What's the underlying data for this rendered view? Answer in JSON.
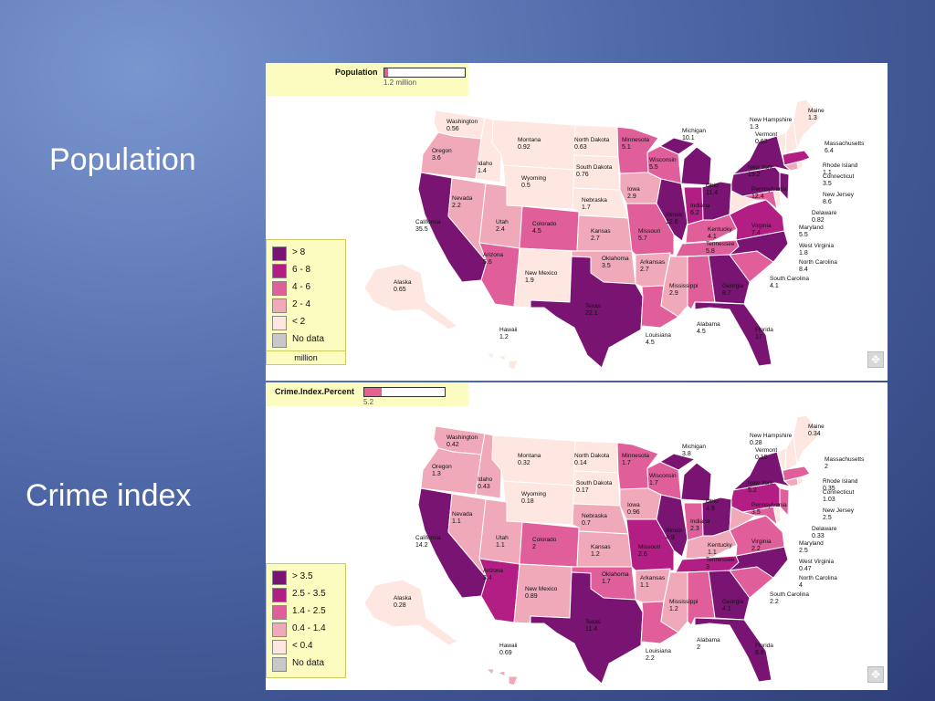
{
  "slide": {
    "label1": "Population",
    "label2": "Crime index"
  },
  "maps": [
    {
      "title": "Population",
      "indicator": {
        "value_text": "1.2 million",
        "fill_fraction": 0.05
      },
      "legend": [
        {
          "label": "> 8",
          "color": "#7a1473"
        },
        {
          "label": "6 - 8",
          "color": "#b21e84"
        },
        {
          "label": "4 - 6",
          "color": "#e05f9a"
        },
        {
          "label": "2 - 4",
          "color": "#f0a9b8"
        },
        {
          "label": "< 2",
          "color": "#fde7e0"
        },
        {
          "label": "No data",
          "color": "#c8c8c8"
        }
      ],
      "unit": "million",
      "states": {
        "Washington": "0.56",
        "Oregon": "3.6",
        "California": "35.5",
        "Nevada": "2.2",
        "Idaho": "1.4",
        "Montana": "0.92",
        "Wyoming": "0.5",
        "Utah": "2.4",
        "Arizona": "5.6",
        "Colorado": "4.5",
        "New Mexico": "1.9",
        "North Dakota": "0.63",
        "South Dakota": "0.76",
        "Nebraska": "1.7",
        "Kansas": "2.7",
        "Oklahoma": "3.5",
        "Texas": "22.1",
        "Minnesota": "5.1",
        "Iowa": "2.9",
        "Missouri": "5.7",
        "Arkansas": "2.7",
        "Louisiana": "4.5",
        "Wisconsin": "5.5",
        "Illinois": "12.6",
        "Michigan": "10.1",
        "Indiana": "6.2",
        "Ohio": "11.4",
        "Kentucky": "4.1",
        "Tennessee": "5.8",
        "Mississippi": "2.9",
        "Alabama": "4.5",
        "Georgia": "8.7",
        "Florida": "17",
        "South Carolina": "4.1",
        "North Carolina": "8.4",
        "Virginia": "7.4",
        "West Virginia": "1.8",
        "Maryland": "5.5",
        "Delaware": "0.82",
        "New Jersey": "8.6",
        "Pennsylvania": "12.4",
        "New York": "19.2",
        "Connecticut": "3.5",
        "Rhode Island": "1.1",
        "Massachusetts": "6.4",
        "Vermont": "0.62",
        "New Hampshire": "1.3",
        "Maine": "1.3",
        "Alaska": "0.65",
        "Hawaii": "1.2"
      }
    },
    {
      "title": "Crime.Index.Percent",
      "indicator": {
        "value_text": "5.2",
        "fill_fraction": 0.22
      },
      "legend": [
        {
          "label": "> 3.5",
          "color": "#7a1473"
        },
        {
          "label": "2.5 - 3.5",
          "color": "#b21e84"
        },
        {
          "label": "1.4 - 2.5",
          "color": "#e05f9a"
        },
        {
          "label": "0.4 - 1.4",
          "color": "#f0a9b8"
        },
        {
          "label": "< 0.4",
          "color": "#fde7e0"
        },
        {
          "label": "No data",
          "color": "#c8c8c8"
        }
      ],
      "unit": "",
      "states": {
        "Washington": "0.42",
        "Oregon": "1.3",
        "California": "14.2",
        "Nevada": "1.1",
        "Idaho": "0.43",
        "Montana": "0.32",
        "Wyoming": "0.18",
        "Utah": "1.1",
        "Arizona": "3.4",
        "Colorado": "2",
        "New Mexico": "0.89",
        "North Dakota": "0.14",
        "South Dakota": "0.17",
        "Nebraska": "0.7",
        "Kansas": "1.2",
        "Oklahoma": "1.7",
        "Texas": "11.4",
        "Minnesota": "1.7",
        "Iowa": "0.96",
        "Missouri": "2.6",
        "Arkansas": "1.1",
        "Louisiana": "2.2",
        "Wisconsin": "1.7",
        "Illinois": "4.9",
        "Michigan": "3.8",
        "Indiana": "2.3",
        "Ohio": "4.9",
        "Kentucky": "1.1",
        "Tennessee": "3",
        "Mississippi": "1.2",
        "Alabama": "2",
        "Georgia": "4.1",
        "Florida": "8.8",
        "South Carolina": "2.2",
        "North Carolina": "4",
        "Virginia": "2.2",
        "West Virginia": "0.47",
        "Maryland": "2.5",
        "Delaware": "0.33",
        "New Jersey": "2.5",
        "Pennsylvania": "3.5",
        "New York": "5.2",
        "Connecticut": "1.03",
        "Rhode Island": "0.35",
        "Massachusetts": "2",
        "Vermont": "0.15",
        "New Hampshire": "0.28",
        "Maine": "0.34",
        "Alaska": "0.28",
        "Hawaii": "0.69"
      }
    }
  ]
}
